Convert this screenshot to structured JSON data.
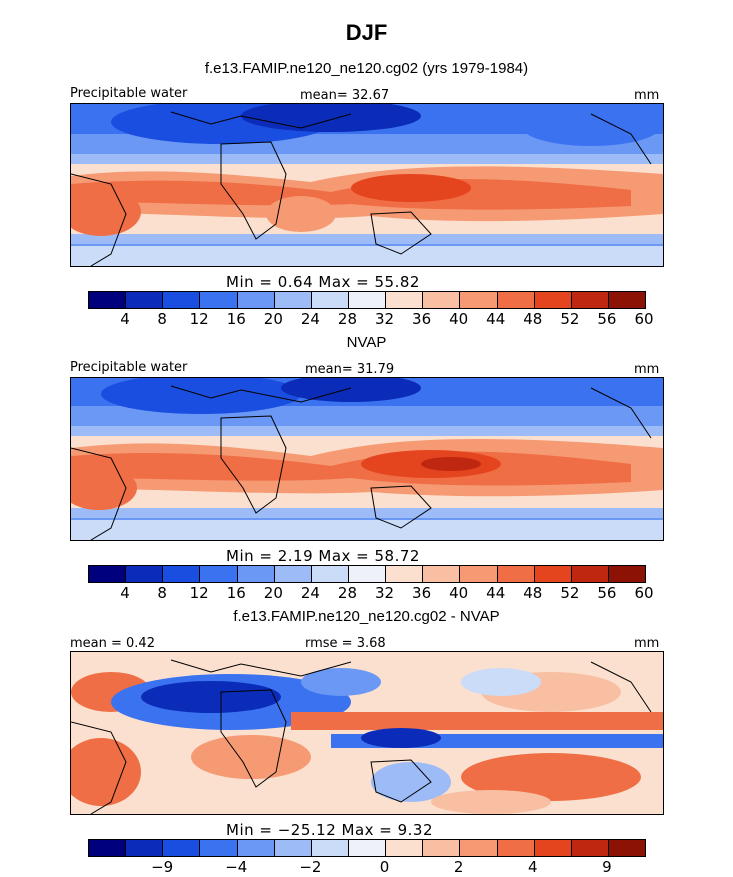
{
  "figure": {
    "title": "DJF",
    "colors": {
      "abs_scale": [
        "#00007f",
        "#0a2cb8",
        "#1a4ee0",
        "#3a72f0",
        "#6a98f4",
        "#9dbcf7",
        "#cbdcf9",
        "#eef2f8",
        "#fbe0cf",
        "#f9bfa2",
        "#f59a73",
        "#ef6e45",
        "#e4451f",
        "#bf2710",
        "#8c1205"
      ],
      "diff_scale": [
        "#00007f",
        "#0a2cb8",
        "#1a4ee0",
        "#3a72f0",
        "#6a98f4",
        "#9dbcf7",
        "#cbdcf9",
        "#eef2f8",
        "#fbe0cf",
        "#f9bfa2",
        "#f59a73",
        "#ef6e45",
        "#e4451f",
        "#bf2710",
        "#8c1205"
      ]
    },
    "panels": [
      {
        "subtitle": "f.e13.FAMIP.ne120_ne120.cg02 (yrs 1979-1984)",
        "left_label": "Precipitable water",
        "center_label": "mean=  32.67",
        "units": "mm",
        "stats": "Min =    0.64  Max =   55.82",
        "ticks": [
          "4",
          "8",
          "12",
          "16",
          "20",
          "24",
          "28",
          "32",
          "36",
          "40",
          "44",
          "48",
          "52",
          "56",
          "60"
        ]
      },
      {
        "subtitle": "NVAP",
        "left_label": "Precipitable water",
        "center_label": "mean=  31.79",
        "units": "mm",
        "stats": "Min =    2.19  Max =   58.72",
        "ticks": [
          "4",
          "8",
          "12",
          "16",
          "20",
          "24",
          "28",
          "32",
          "36",
          "40",
          "44",
          "48",
          "52",
          "56",
          "60"
        ]
      },
      {
        "subtitle": "f.e13.FAMIP.ne120_ne120.cg02 - NVAP",
        "left_label": "mean =    0.42",
        "center_label": "rmse =    3.68",
        "units": "mm",
        "stats": "Min = −25.12  Max =    9.32",
        "ticks": [
          "−9",
          "−4",
          "−2",
          "0",
          "2",
          "4",
          "9"
        ]
      }
    ]
  }
}
